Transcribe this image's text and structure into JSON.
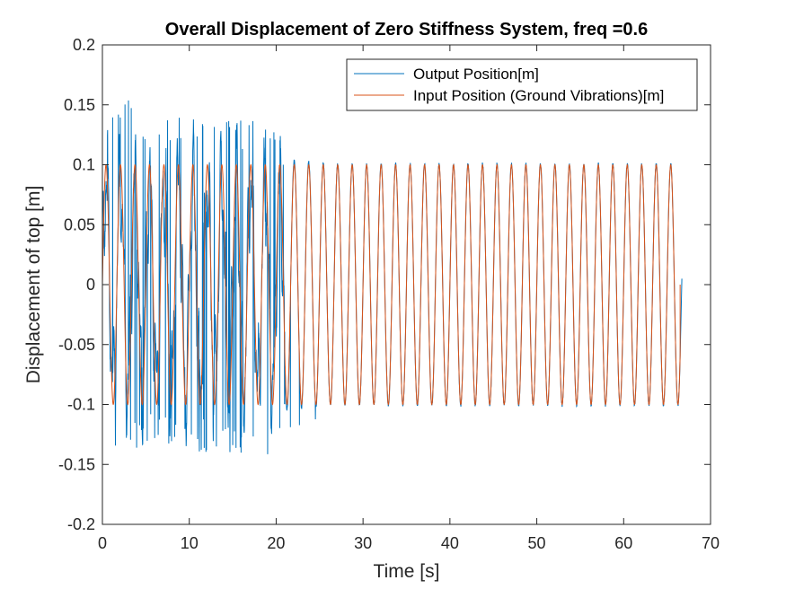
{
  "chart_data": {
    "type": "line",
    "title": "Overall Displacement of Zero Stiffness System, freq =0.6",
    "xlabel": "Time [s]",
    "ylabel": "Displacement of top [m]",
    "xlim": [
      0,
      70
    ],
    "ylim": [
      -0.2,
      0.2
    ],
    "xticks": [
      0,
      10,
      20,
      30,
      40,
      50,
      60,
      70
    ],
    "xtick_labels": [
      "0",
      "10",
      "20",
      "30",
      "40",
      "50",
      "60",
      "70"
    ],
    "yticks": [
      -0.2,
      -0.15,
      -0.1,
      -0.05,
      0,
      0.05,
      0.1,
      0.15,
      0.2
    ],
    "ytick_labels": [
      "-0.2",
      "-0.15",
      "-0.1",
      "-0.05",
      "0",
      "0.05",
      "0.1",
      "0.15",
      "0.2"
    ],
    "grid": false,
    "legend_position": "top-right",
    "input_signal": {
      "amplitude": 0.1,
      "frequency_hz": 0.6,
      "t_start": 0,
      "t_end": 66.5
    },
    "series": [
      {
        "name": "Output Position[m]",
        "color": "#0072BD",
        "approx_envelope": [
          {
            "t": 0.5,
            "max": 0.15,
            "min": -0.15
          },
          {
            "t": 2.2,
            "max": 0.16,
            "min": -0.155
          },
          {
            "t": 5.0,
            "max": 0.14,
            "min": -0.13
          },
          {
            "t": 10.0,
            "max": 0.14,
            "min": -0.14
          },
          {
            "t": 15.0,
            "max": 0.14,
            "min": -0.14
          },
          {
            "t": 20.0,
            "max": 0.14,
            "min": -0.15
          },
          {
            "t": 21.0,
            "max": 0.12,
            "min": -0.12
          },
          {
            "t": 24.0,
            "max": 0.11,
            "min": -0.115
          },
          {
            "t": 26.0,
            "max": 0.103,
            "min": -0.105
          },
          {
            "t": 66.5,
            "max": 0.102,
            "min": -0.105
          }
        ]
      },
      {
        "name": "Input Position (Ground Vibrations)[m]",
        "color": "#D95319",
        "values_description_source": "input_signal"
      }
    ]
  }
}
